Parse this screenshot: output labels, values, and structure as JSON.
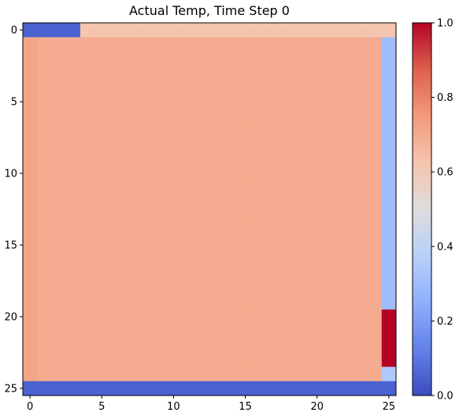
{
  "chart_data": {
    "type": "heatmap",
    "title": "Actual Temp, Time Step 0",
    "xlabel": "",
    "ylabel": "",
    "rows": 26,
    "cols": 26,
    "x_ticks": [
      0,
      5,
      10,
      15,
      20,
      25
    ],
    "y_ticks": [
      0,
      5,
      10,
      15,
      20,
      25
    ],
    "colormap": "coolwarm",
    "colorbar": {
      "min": 0.0,
      "max": 1.0,
      "ticks": [
        "0.0",
        "0.2",
        "0.4",
        "0.6",
        "0.8",
        "1.0"
      ]
    },
    "values": {
      "interior": 0.7,
      "top_row": {
        "cols_0_to_3": 0.05,
        "rest": 0.62
      },
      "left_column": 0.72,
      "right_column": {
        "rows_1_to_19": 0.3,
        "rows_20_to_23": 1.0,
        "row_24": 0.35
      },
      "bottom_row": 0.05
    }
  }
}
